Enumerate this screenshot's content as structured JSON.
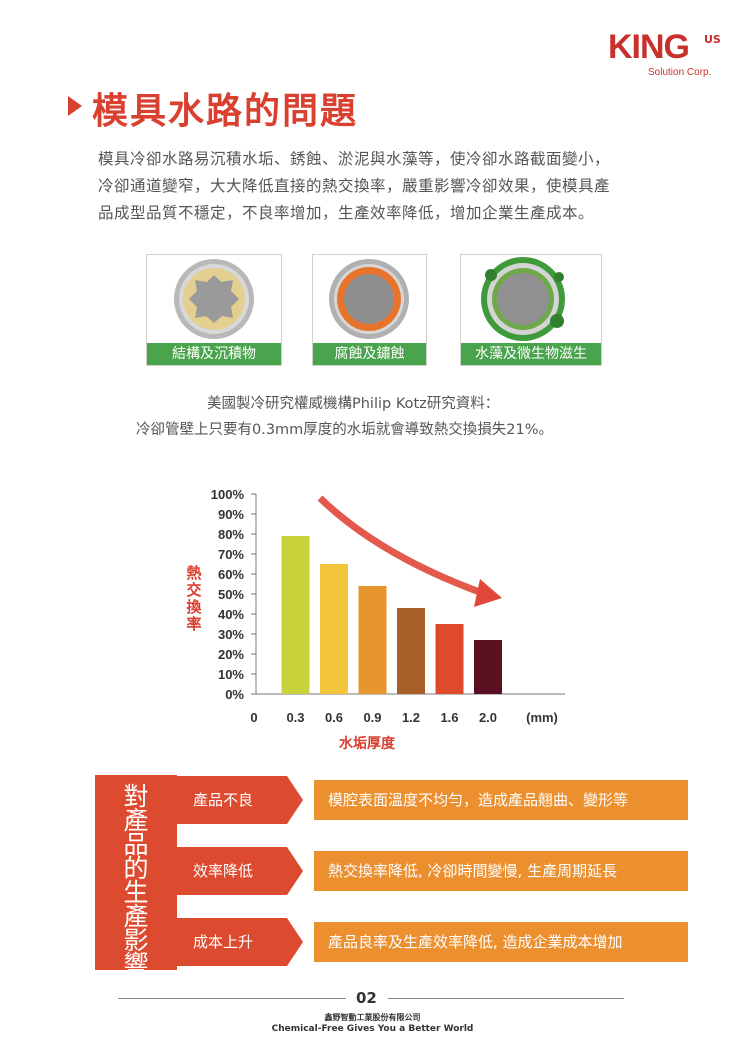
{
  "logo": {
    "word": "KING",
    "suffix": "US",
    "subtitle": "Solution Corp."
  },
  "title": "模具水路的問題",
  "intro_lines": [
    "模具冷卻水路易沉積水垢、銹蝕、淤泥與水藻等，使冷卻水路截面變小，",
    "冷卻通道變窄，大大降低直接的熱交換率，嚴重影響冷卻效果，使模具產",
    "品成型品質不穩定，不良率增加，生產效率降低，增加企業生產成本。"
  ],
  "pipes": [
    {
      "label": "結構及沉積物",
      "deposit_color": "#e3cf8f"
    },
    {
      "label": "腐蝕及鏽蝕",
      "deposit_color": "#e8742c"
    },
    {
      "label": "水藻及微生物滋生",
      "deposit_color": "#3f9a3c"
    }
  ],
  "note_lines": [
    "美國製冷研究權威機構Philip Kotz研究資料：",
    "冷卻管壁上只要有0.3mm厚度的水垢就會導致熱交換損失21%。"
  ],
  "chart_data": {
    "type": "bar",
    "ylabel": "熱交換率",
    "xlabel": "水垢厚度",
    "x_unit": "(mm)",
    "x_ticks": [
      "0",
      "0.3",
      "0.6",
      "0.9",
      "1.2",
      "1.6",
      "2.0"
    ],
    "y_ticks": [
      "0%",
      "10%",
      "20%",
      "30%",
      "40%",
      "50%",
      "60%",
      "70%",
      "80%",
      "90%",
      "100%"
    ],
    "ylim": [
      0,
      100
    ],
    "categories": [
      "0.3",
      "0.6",
      "0.9",
      "1.2",
      "1.6",
      "2.0"
    ],
    "values": [
      79,
      65,
      54,
      43,
      35,
      27
    ],
    "colors": [
      "#c9d13b",
      "#f2c53a",
      "#e8952f",
      "#a95f2a",
      "#df4a2f",
      "#5a1020"
    ],
    "arrow_color": "#e0483a"
  },
  "impact": {
    "heading": "對產品的生產影響",
    "rows": [
      {
        "category": "產品不良",
        "description": "模腔表面溫度不均勻，造成產品翹曲、變形等"
      },
      {
        "category": "效率降低",
        "description": "熱交換率降低, 冷卻時間變慢, 生產周期延長"
      },
      {
        "category": "成本上升",
        "description": "產品良率及生產效率降低, 造成企業成本增加"
      }
    ]
  },
  "footer": {
    "page": "02",
    "company": "鑫野智動工業股份有限公司",
    "slogan": "Chemical-Free Gives You a Better World"
  }
}
